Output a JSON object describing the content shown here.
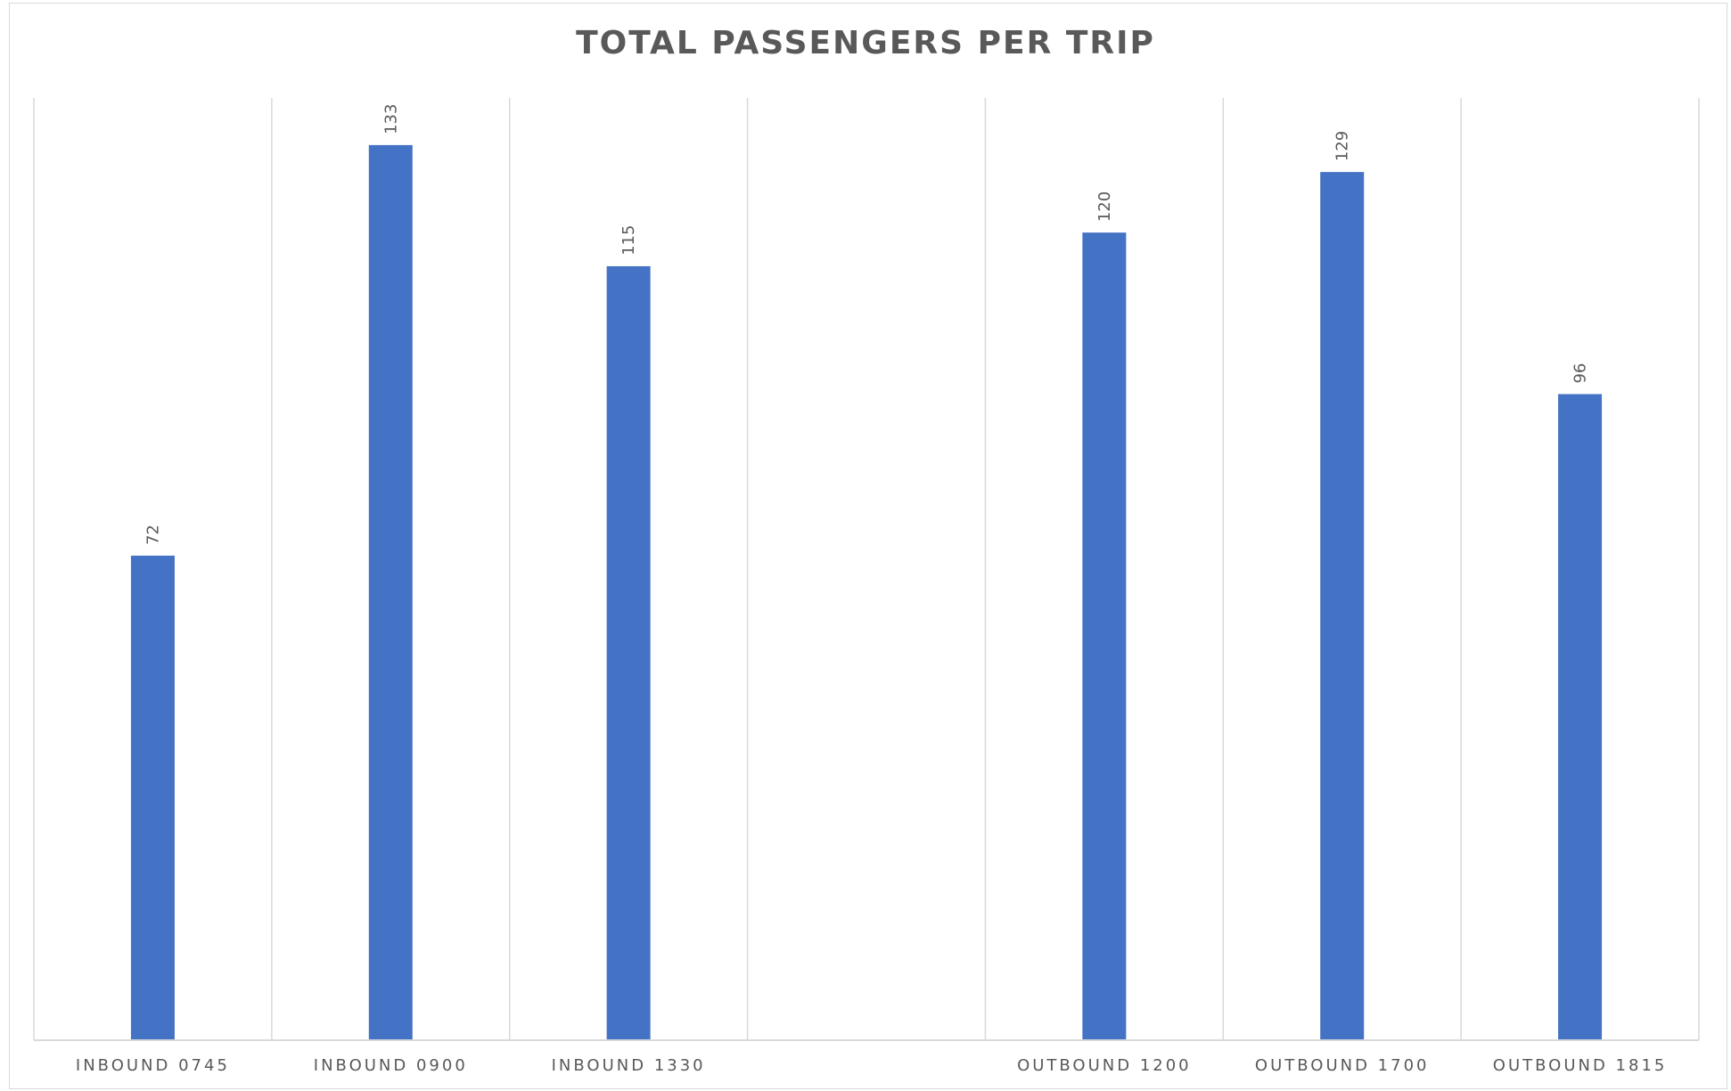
{
  "chart_data": {
    "type": "bar",
    "title": "TOTAL PASSENGERS PER TRIP",
    "categories": [
      "INBOUND 0745",
      "INBOUND 0900",
      "INBOUND 1330",
      "",
      "OUTBOUND 1200",
      "OUTBOUND 1700",
      "OUTBOUND 1815"
    ],
    "values": [
      72,
      133,
      115,
      null,
      120,
      129,
      96
    ],
    "data_labels": [
      "72",
      "133",
      "115",
      "",
      "120",
      "129",
      "96"
    ],
    "xlabel": "",
    "ylabel": "",
    "ylim": [
      0,
      140
    ],
    "grid": "vertical category separators",
    "legend": "none",
    "colors": {
      "bar": "#4472C4",
      "grid": "#d9d9d9",
      "axis": "#d9d9d9",
      "text": "#595959"
    }
  }
}
